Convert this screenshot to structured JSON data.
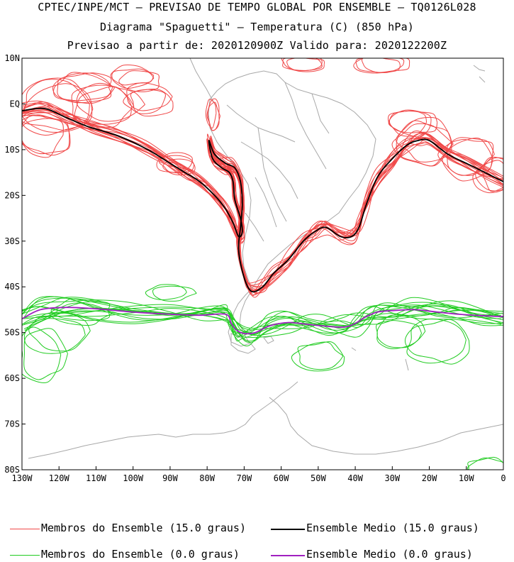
{
  "titles": {
    "line1": "CPTEC/INPE/MCT – PREVISAO DE TEMPO GLOBAL POR ENSEMBLE – TQ0126L028",
    "line2": "Diagrama \"Spaguetti\" – Temperatura (C) (850 hPa)",
    "line3": "Previsao a partir de: 2020120900Z  Valido para: 2020122200Z"
  },
  "axes": {
    "lat_labels": [
      "10N",
      "EQ",
      "10S",
      "20S",
      "30S",
      "40S",
      "50S",
      "60S",
      "70S",
      "80S"
    ],
    "lat_values": [
      10,
      0,
      -10,
      -20,
      -30,
      -40,
      -50,
      -60,
      -70,
      -80
    ],
    "lon_labels": [
      "130W",
      "120W",
      "110W",
      "100W",
      "90W",
      "80W",
      "70W",
      "60W",
      "50W",
      "40W",
      "30W",
      "20W",
      "10W",
      "0"
    ],
    "lon_values": [
      -130,
      -120,
      -110,
      -100,
      -90,
      -80,
      -70,
      -60,
      -50,
      -40,
      -30,
      -20,
      -10,
      0
    ],
    "lon_range": [
      -130,
      0
    ],
    "lat_range": [
      -80,
      10
    ]
  },
  "colors": {
    "members_15": "#f04848",
    "mean_15": "#000000",
    "members_0": "#22cc22",
    "mean_0": "#a020c0",
    "coast": "#a8a8a8"
  },
  "legend": [
    {
      "label": "Membros do Ensemble (15.0 graus)",
      "color": "#f04848"
    },
    {
      "label": "Ensemble Medio (15.0 graus)",
      "color": "#000000"
    },
    {
      "label": "Membros do Ensemble (0.0 graus)",
      "color": "#22cc22"
    },
    {
      "label": "Ensemble Medio (0.0 graus)",
      "color": "#a020c0"
    }
  ],
  "chart_data": {
    "type": "map",
    "series": [
      {
        "name": "Ensemble Medio (15.0 graus)",
        "lon": [
          -130,
          -124,
          -118,
          -112,
          -104,
          -96,
          -90,
          -86,
          -82,
          -78,
          -75,
          -73,
          -71.5,
          -70.5,
          -71,
          -72.5,
          -73,
          -74,
          -76,
          -78.5,
          -79.5,
          -78,
          -75,
          -72.5,
          -71,
          -70.5,
          -71,
          -71.5,
          -70,
          -68,
          -65,
          -62,
          -58,
          -54,
          -51,
          -48,
          -44,
          -41,
          -39,
          -37,
          -34,
          -30,
          -26,
          -23,
          -20,
          -15,
          -10,
          -5,
          0
        ],
        "lat": [
          -1.5,
          -1,
          -3,
          -5,
          -7,
          -10,
          -13,
          -15,
          -17,
          -20,
          -23,
          -26,
          -29,
          -28,
          -25,
          -21,
          -17,
          -15,
          -14,
          -12,
          -8,
          -11,
          -13,
          -14,
          -17,
          -22,
          -27,
          -32,
          -38,
          -41,
          -40,
          -37,
          -34,
          -30,
          -28,
          -27,
          -29,
          -29,
          -27,
          -22,
          -16,
          -12,
          -9,
          -8,
          -8,
          -11,
          -13,
          -15,
          -17
        ]
      },
      {
        "name": "Ensemble Medio (0.0 graus)",
        "lon": [
          -130,
          -125,
          -118,
          -110,
          -100,
          -90,
          -82,
          -75,
          -73.5,
          -72,
          -70,
          -67,
          -63,
          -58,
          -53,
          -48,
          -43,
          -40,
          -37,
          -34,
          -30,
          -24,
          -18,
          -12,
          -6,
          0
        ],
        "lat": [
          -47,
          -45,
          -44.5,
          -44.8,
          -45.5,
          -46,
          -46.2,
          -46,
          -48,
          -49.5,
          -50.2,
          -50,
          -48.5,
          -47.8,
          -48.2,
          -48.6,
          -48.8,
          -48,
          -46.5,
          -45.5,
          -45.2,
          -45,
          -45.5,
          -46,
          -46.3,
          -46.5
        ]
      }
    ]
  }
}
